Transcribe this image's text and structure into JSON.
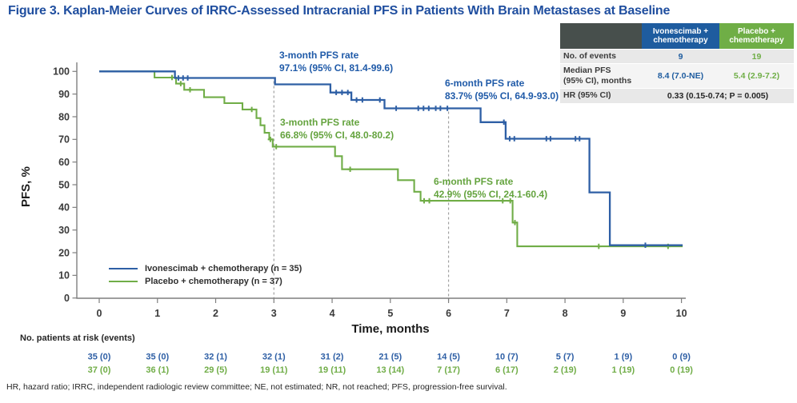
{
  "title": "Figure 3. Kaplan-Meier Curves of IRRC-Assessed Intracranial PFS in Patients With Brain Metastases at Baseline",
  "colors": {
    "title_blue": "#1F4E9F",
    "ivonescimab_blue": "#2E5FA5",
    "placebo_green": "#70AD47",
    "table_header_blue": "#1E5C9F",
    "table_header_green": "#6FAE46",
    "table_header_gray": "#474F4C",
    "axis_gray": "#7F7F7F",
    "dash_gray": "#A0A0A0"
  },
  "summary_table": {
    "columns": [
      "",
      "Ivonescimab +\nchemotherapy",
      "Placebo +\nchemotherapy"
    ],
    "rows": [
      {
        "label": "No. of events",
        "ivo": "9",
        "pbo": "19"
      },
      {
        "label": "Median PFS\n(95% CI), months",
        "ivo": "8.4 (7.0-NE)",
        "pbo": "5.4 (2.9-7.2)"
      },
      {
        "label": "HR (95% CI)",
        "combined": "0.33 (0.15-0.74; P = 0.005)"
      }
    ]
  },
  "chart_data": {
    "type": "line",
    "subtype": "kaplan-meier-step",
    "xlabel": "Time, months",
    "ylabel": "PFS, %",
    "xlim": [
      0,
      10
    ],
    "ylim": [
      0,
      100
    ],
    "xticks": [
      0,
      1,
      2,
      3,
      4,
      5,
      6,
      7,
      8,
      9,
      10
    ],
    "yticks": [
      0,
      10,
      20,
      30,
      40,
      50,
      60,
      70,
      80,
      90,
      100
    ],
    "grid": false,
    "legend_position": "lower-left",
    "reference_lines_x": [
      3,
      6
    ],
    "series": [
      {
        "name": "Ivonescimab + chemotherapy (n = 35)",
        "color": "#2E5FA5",
        "steps": [
          [
            0,
            100
          ],
          [
            1.3,
            100
          ],
          [
            1.3,
            97.1
          ],
          [
            3.02,
            97.1
          ],
          [
            3.02,
            94.3
          ],
          [
            3.97,
            94.3
          ],
          [
            3.97,
            90.7
          ],
          [
            4.33,
            90.7
          ],
          [
            4.33,
            87.4
          ],
          [
            4.9,
            87.4
          ],
          [
            4.9,
            83.7
          ],
          [
            6.55,
            83.7
          ],
          [
            6.55,
            77.6
          ],
          [
            6.98,
            77.6
          ],
          [
            6.98,
            70.3
          ],
          [
            8.42,
            70.3
          ],
          [
            8.42,
            46.6
          ],
          [
            8.77,
            46.6
          ],
          [
            8.77,
            23.3
          ],
          [
            10.02,
            23.3
          ]
        ],
        "censors": [
          [
            1.36,
            97.1
          ],
          [
            1.44,
            97.1
          ],
          [
            1.52,
            97.1
          ],
          [
            4.07,
            90.7
          ],
          [
            4.17,
            90.7
          ],
          [
            4.27,
            90.7
          ],
          [
            4.42,
            87.4
          ],
          [
            4.52,
            87.4
          ],
          [
            4.82,
            87.4
          ],
          [
            5.1,
            83.7
          ],
          [
            5.48,
            83.7
          ],
          [
            5.57,
            83.7
          ],
          [
            5.66,
            83.7
          ],
          [
            5.78,
            83.7
          ],
          [
            5.86,
            83.7
          ],
          [
            5.98,
            83.7
          ],
          [
            6.95,
            77.6
          ],
          [
            7.05,
            70.3
          ],
          [
            7.13,
            70.3
          ],
          [
            7.68,
            70.3
          ],
          [
            7.75,
            70.3
          ],
          [
            8.18,
            70.3
          ],
          [
            8.25,
            70.3
          ],
          [
            9.38,
            23.3
          ]
        ]
      },
      {
        "name": "Placebo + chemotherapy (n = 37)",
        "color": "#70AD47",
        "steps": [
          [
            0,
            100
          ],
          [
            0.95,
            100
          ],
          [
            0.95,
            97.3
          ],
          [
            1.32,
            97.3
          ],
          [
            1.32,
            94.6
          ],
          [
            1.46,
            94.6
          ],
          [
            1.46,
            91.9
          ],
          [
            1.8,
            91.9
          ],
          [
            1.8,
            88.6
          ],
          [
            2.15,
            88.6
          ],
          [
            2.15,
            86.0
          ],
          [
            2.46,
            86.0
          ],
          [
            2.46,
            83.2
          ],
          [
            2.7,
            83.2
          ],
          [
            2.7,
            79.4
          ],
          [
            2.77,
            79.4
          ],
          [
            2.77,
            76.2
          ],
          [
            2.84,
            76.2
          ],
          [
            2.84,
            72.9
          ],
          [
            2.92,
            72.9
          ],
          [
            2.92,
            70.0
          ],
          [
            2.98,
            70.0
          ],
          [
            2.98,
            66.8
          ],
          [
            4.05,
            66.8
          ],
          [
            4.05,
            62.6
          ],
          [
            4.17,
            62.6
          ],
          [
            4.17,
            56.8
          ],
          [
            5.13,
            56.8
          ],
          [
            5.13,
            52.0
          ],
          [
            5.41,
            52.0
          ],
          [
            5.41,
            46.9
          ],
          [
            5.52,
            46.9
          ],
          [
            5.52,
            42.9
          ],
          [
            7.1,
            42.9
          ],
          [
            7.1,
            33.3
          ],
          [
            7.18,
            33.3
          ],
          [
            7.18,
            22.8
          ],
          [
            10.02,
            22.8
          ]
        ],
        "censors": [
          [
            1.25,
            97.3
          ],
          [
            1.4,
            94.6
          ],
          [
            1.56,
            91.9
          ],
          [
            2.62,
            83.2
          ],
          [
            2.94,
            70.0
          ],
          [
            3.04,
            66.8
          ],
          [
            4.31,
            56.8
          ],
          [
            5.58,
            42.9
          ],
          [
            5.67,
            42.9
          ],
          [
            6.93,
            42.9
          ],
          [
            7.06,
            42.9
          ],
          [
            7.14,
            33.3
          ],
          [
            8.58,
            22.8
          ],
          [
            9.77,
            22.8
          ]
        ]
      }
    ],
    "annotations": [
      {
        "x_month": 3,
        "series": "ivonescimab",
        "label": "3-month PFS rate",
        "value": "97.1% (95% CI, 81.4-99.6)"
      },
      {
        "x_month": 6,
        "series": "ivonescimab",
        "label": "6-month PFS rate",
        "value": "83.7% (95% CI, 64.9-93.0)"
      },
      {
        "x_month": 3,
        "series": "placebo",
        "label": "3-month PFS rate",
        "value": "66.8% (95% CI, 48.0-80.2)"
      },
      {
        "x_month": 6,
        "series": "placebo",
        "label": "6-month PFS rate",
        "value": "42.9% (95% CI, 24.1-60.4)"
      }
    ]
  },
  "risk_table": {
    "label": "No. patients at risk (events)",
    "months": [
      0,
      1,
      2,
      3,
      4,
      5,
      6,
      7,
      8,
      9,
      10
    ],
    "rows": [
      {
        "name": "ivonescimab",
        "color": "#2E5FA5",
        "values": [
          "35 (0)",
          "35 (0)",
          "32 (1)",
          "32 (1)",
          "31 (2)",
          "21 (5)",
          "14 (5)",
          "10 (7)",
          "5 (7)",
          "1 (9)",
          "0 (9)"
        ]
      },
      {
        "name": "placebo",
        "color": "#70AD47",
        "values": [
          "37 (0)",
          "36 (1)",
          "29 (5)",
          "19 (11)",
          "19 (11)",
          "13 (14)",
          "7 (17)",
          "6 (17)",
          "2 (19)",
          "1 (19)",
          "0 (19)"
        ]
      }
    ]
  },
  "footnote": "HR, hazard ratio; IRRC, independent radiologic review committee; NE, not estimated; NR, not reached; PFS, progression-free survival."
}
